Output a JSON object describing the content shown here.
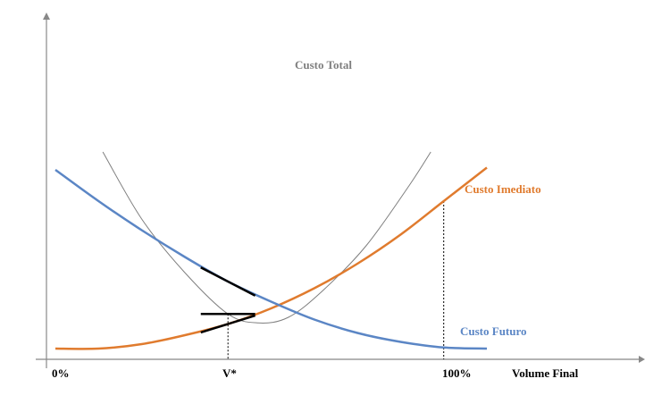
{
  "chart_data": {
    "type": "line",
    "xlabel": "Volume Final",
    "ylabel": "",
    "x_ticks": [
      "0%",
      "V*",
      "100%"
    ],
    "grid": false,
    "legend": "inline labels at curve ends",
    "colors": {
      "total": "#7f7f7f",
      "imediato": "#e07b2e",
      "futuro": "#5b86c5",
      "axis": "#888888"
    },
    "series": [
      {
        "name": "Custo Total",
        "x": [
          0.11,
          0.2,
          0.3,
          0.4,
          0.47,
          0.54,
          0.62,
          0.72,
          0.82,
          0.87
        ],
        "y": [
          0.92,
          0.62,
          0.38,
          0.195,
          0.155,
          0.18,
          0.3,
          0.5,
          0.77,
          0.92
        ]
      },
      {
        "name": "Custo Imediato",
        "x": [
          0.0,
          0.1,
          0.2,
          0.3,
          0.4,
          0.5,
          0.6,
          0.7,
          0.8,
          0.9,
          1.0
        ],
        "y": [
          0.04,
          0.04,
          0.06,
          0.1,
          0.15,
          0.22,
          0.31,
          0.42,
          0.55,
          0.7,
          0.85
        ]
      },
      {
        "name": "Custo Futuro",
        "x": [
          0.0,
          0.1,
          0.2,
          0.3,
          0.4,
          0.5,
          0.6,
          0.7,
          0.8,
          0.9,
          1.0
        ],
        "y": [
          0.84,
          0.7,
          0.57,
          0.45,
          0.34,
          0.25,
          0.17,
          0.11,
          0.07,
          0.045,
          0.04
        ]
      }
    ],
    "x_optimum": 0.4,
    "x_full": 0.9
  }
}
